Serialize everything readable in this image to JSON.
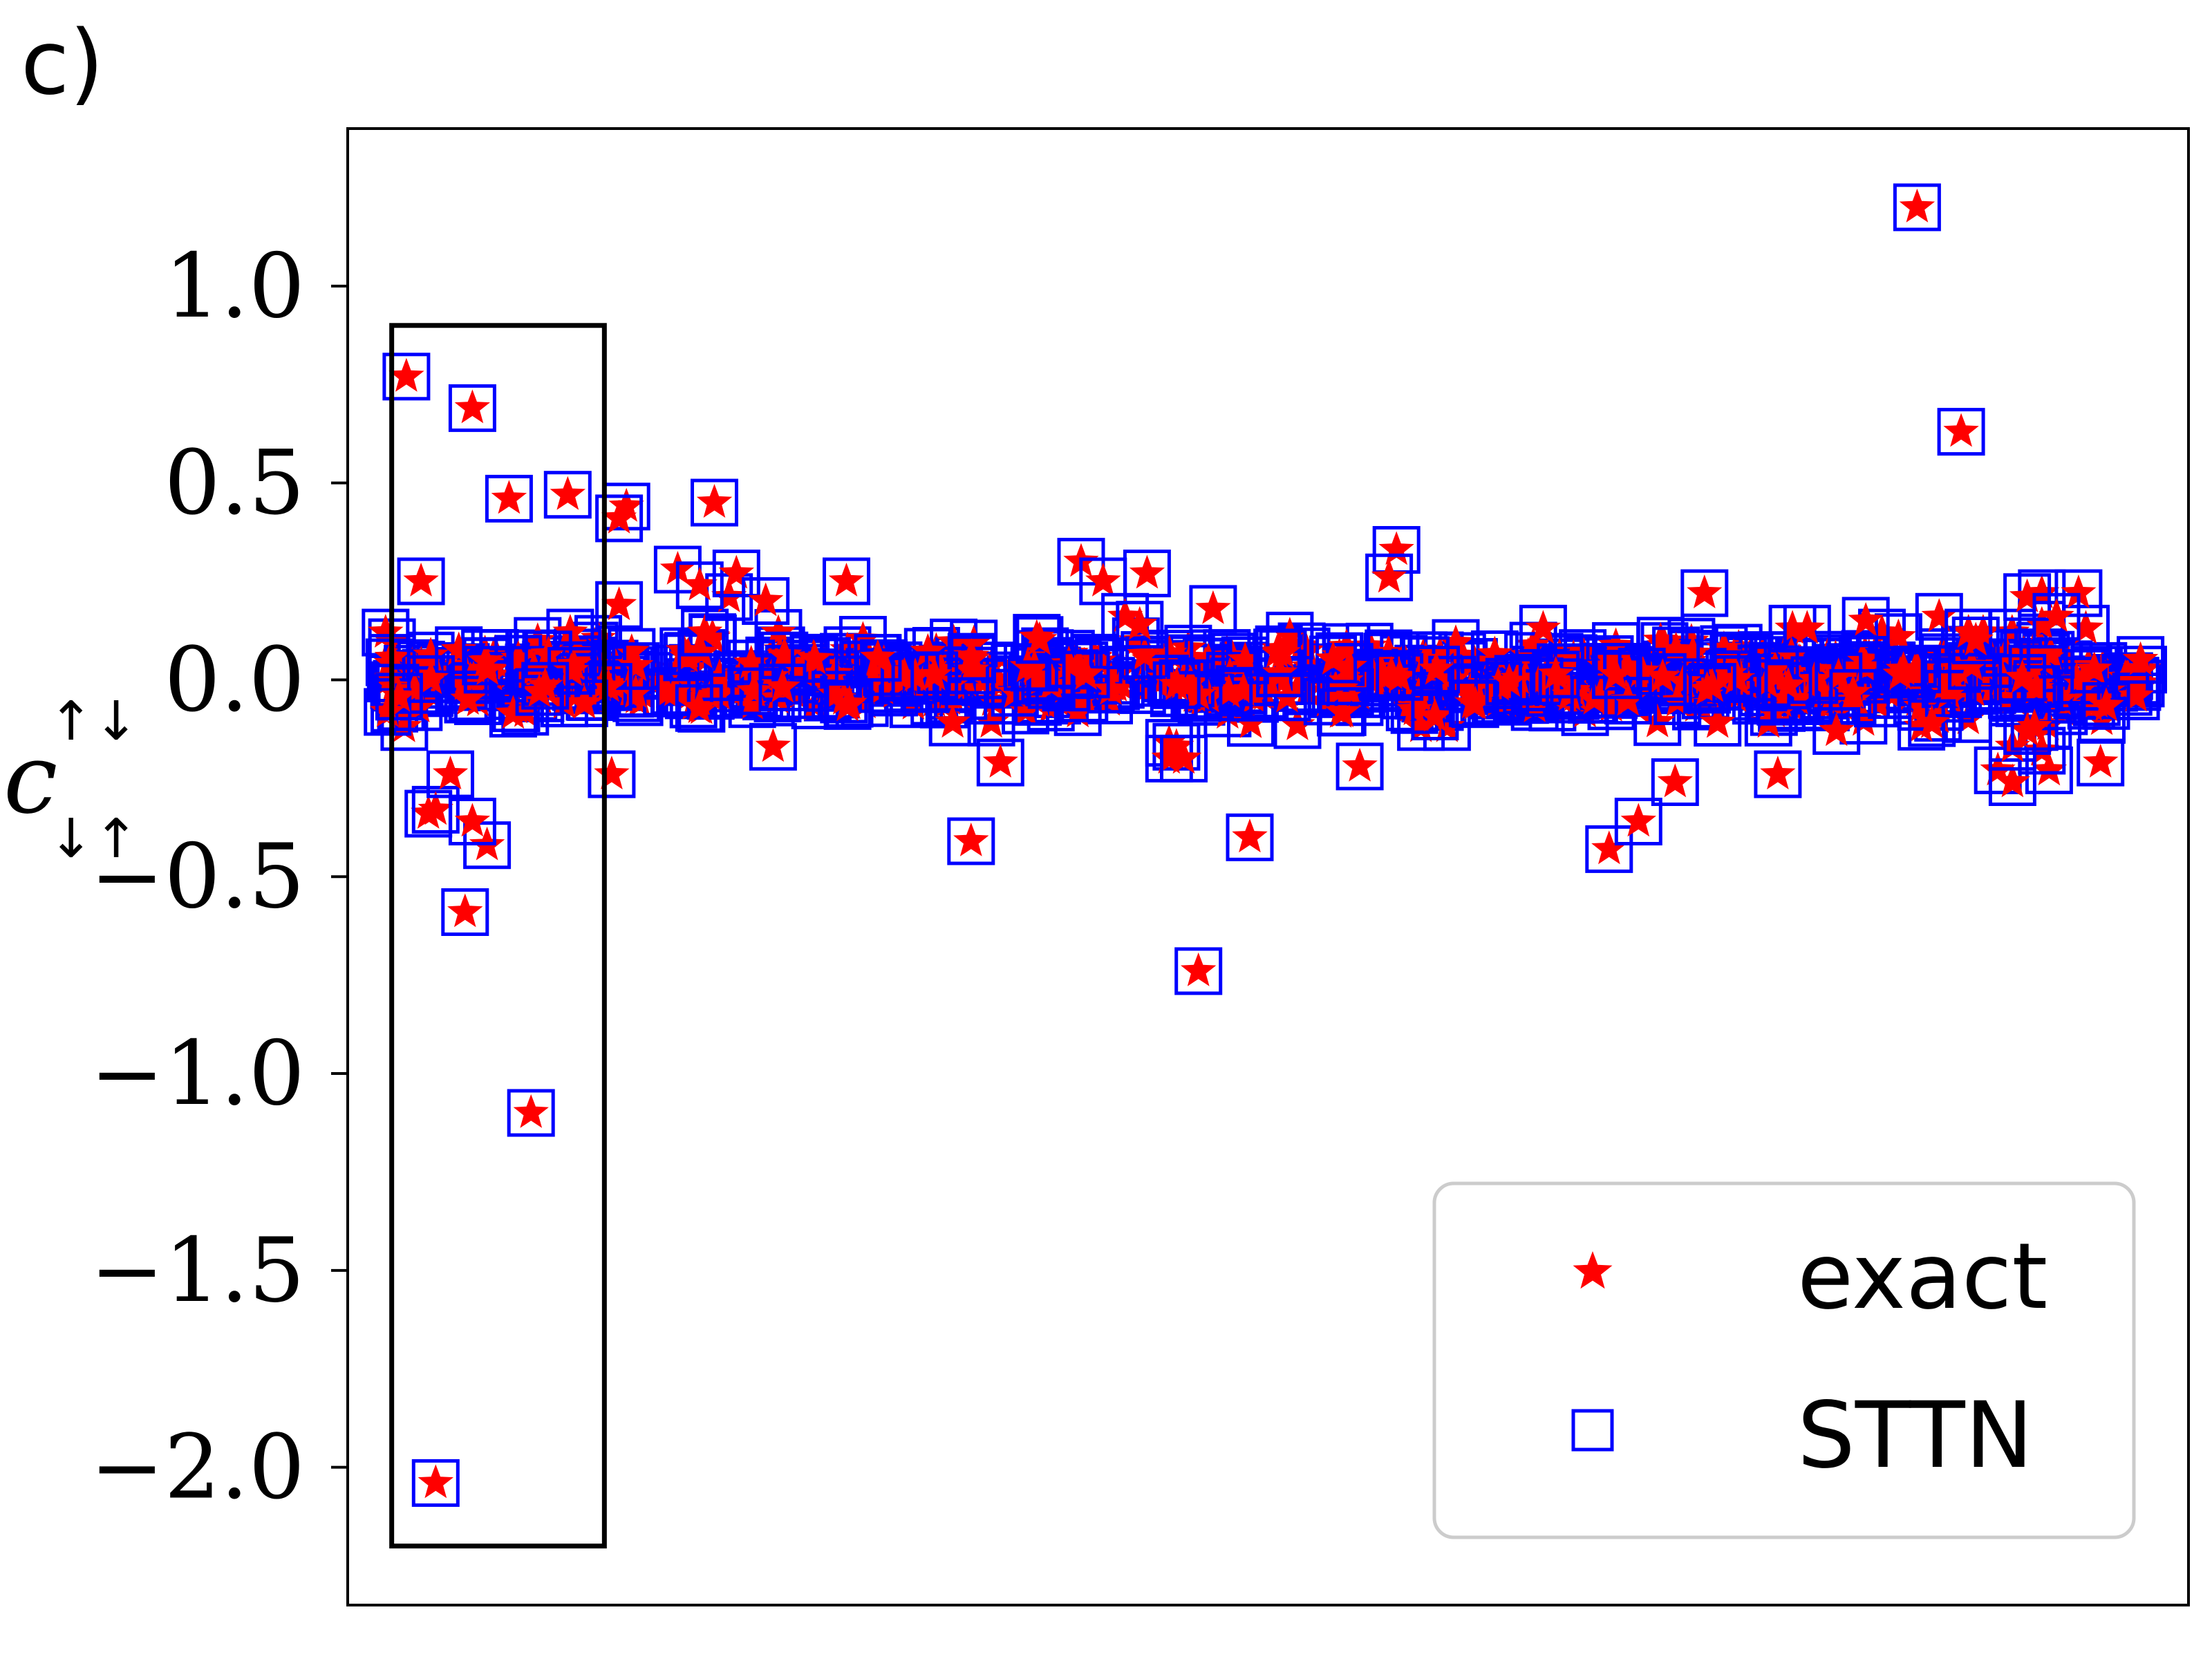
{
  "panel_label": "c)",
  "colors": {
    "exact": "#ff0000",
    "sttn": "#0000ff",
    "frame": "#000000",
    "legend_border": "#cccccc"
  },
  "chart_data": {
    "type": "scatter",
    "title": "",
    "xlabel": "",
    "ylabel": "c",
    "ylabel_superscript": "↑↓",
    "ylabel_subscript": "↓↑",
    "ylim": [
      -2.35,
      1.4
    ],
    "yticks": [
      1.0,
      0.5,
      0.0,
      -0.5,
      -1.0,
      -1.5,
      -2.0
    ],
    "ytick_labels": [
      "1.0",
      "0.5",
      "0.0",
      "−0.5",
      "−1.0",
      "−1.5",
      "−2.0"
    ],
    "xticks_visible": false,
    "grid": false,
    "legend_position": "lower-right",
    "highlight_box": {
      "x_range": [
        1,
        30
      ],
      "y_range": [
        -2.2,
        0.9
      ]
    },
    "series": [
      {
        "name": "exact",
        "marker": "star"
      },
      {
        "name": "STTN",
        "marker": "square-open"
      }
    ],
    "outliers": {
      "x": [
        3,
        6,
        7,
        5,
        12,
        25,
        9,
        7,
        14,
        12,
        33,
        32,
        17,
        11,
        20,
        31,
        40,
        53,
        47,
        43,
        32,
        45,
        48,
        52,
        63,
        80,
        95,
        84,
        98,
        101,
        103,
        107,
        111,
        108,
        107,
        104,
        109,
        113,
        118,
        133,
        138,
        137,
        158,
        167,
        171,
        180,
        192,
        176,
        190,
        209,
        215,
        220,
        226,
        234,
        198,
        226,
        227,
        194,
        211,
        212,
        218,
        226,
        224,
        222,
        232,
        231,
        228,
        202,
        222,
        224,
        225,
        216,
        217
      ],
      "y": [
        0.77,
        -0.34,
        -0.33,
        0.25,
        0.69,
        0.47,
        -0.24,
        -2.04,
        -0.42,
        -0.36,
        0.44,
        0.41,
        0.46,
        -0.59,
        -1.1,
        -0.24,
        0.28,
        -0.17,
        0.21,
        0.24,
        0.19,
        0.45,
        0.27,
        0.2,
        0.25,
        -0.41,
        0.3,
        -0.21,
        0.25,
        0.16,
        0.14,
        -0.16,
        -0.74,
        -0.17,
        -0.2,
        0.27,
        -0.2,
        0.18,
        -0.4,
        -0.22,
        0.33,
        0.26,
        0.13,
        -0.43,
        -0.36,
        0.22,
        0.13,
        -0.26,
        -0.24,
        1.2,
        0.63,
        -0.23,
        0.22,
        -0.21,
        -0.13,
        0.14,
        -0.23,
        0.13,
        -0.11,
        0.16,
        0.12,
        -0.18,
        0.21,
        -0.26,
        0.13,
        0.22,
        0.16,
        0.15,
        -0.17,
        -0.13,
        -0.12,
        0.12,
        0.1
      ]
    },
    "bulk": {
      "x_range": [
        0,
        240
      ],
      "count": 720,
      "y_spread_note": "dense cluster of points around 0 with |y| mostly below 0.1",
      "y_sigma": 0.045
    }
  }
}
